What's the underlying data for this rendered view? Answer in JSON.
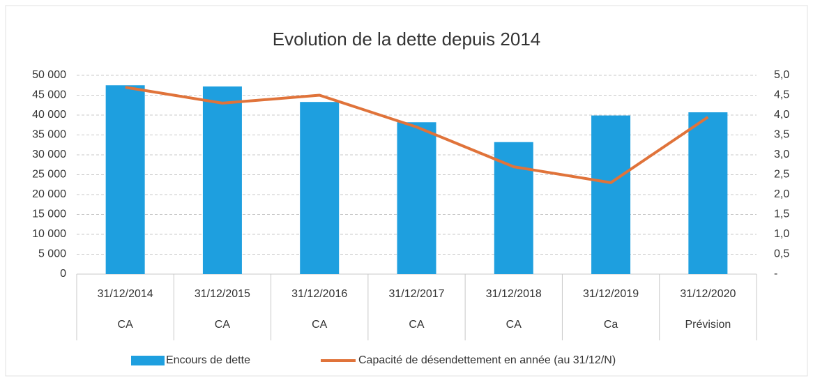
{
  "chart_data": {
    "type": "bar-line",
    "title": "Evolution de la dette depuis 2014",
    "categories": [
      "31/12/2014",
      "31/12/2015",
      "31/12/2016",
      "31/12/2017",
      "31/12/2018",
      "31/12/2019",
      "31/12/2020"
    ],
    "category_groups": [
      "CA",
      "CA",
      "CA",
      "CA",
      "CA",
      "Ca",
      "Prévision"
    ],
    "series": [
      {
        "name": "Encours de dette",
        "type": "bar",
        "color": "#1e9fdf",
        "values": [
          47500,
          47200,
          43300,
          38200,
          33200,
          39900,
          40700
        ]
      },
      {
        "name": "Capacité de désendettement en année (au 31/12/N)",
        "type": "line",
        "axis": "y2",
        "color": "#e0733a",
        "values": [
          4.7,
          4.3,
          4.5,
          3.7,
          2.7,
          2.3,
          3.95
        ]
      }
    ],
    "ylim": [
      0,
      50000
    ],
    "yticks": [
      0,
      {
        "value": 5000,
        "label": "5 000"
      },
      {
        "value": 10000,
        "label": "10 000"
      },
      {
        "value": 15000,
        "label": "15 000"
      },
      {
        "value": 20000,
        "label": "20 000"
      },
      {
        "value": 25000,
        "label": "25 000"
      },
      {
        "value": 30000,
        "label": "30 000"
      },
      {
        "value": 35000,
        "label": "35 000"
      },
      {
        "value": 40000,
        "label": "40 000"
      },
      {
        "value": 45000,
        "label": "45 000"
      },
      {
        "value": 50000,
        "label": "50 000"
      }
    ],
    "y2lim": [
      0,
      5
    ],
    "y2ticks": [
      {
        "value": 0,
        "label": "-"
      },
      {
        "value": 0.5,
        "label": "0,5"
      },
      {
        "value": 1,
        "label": "1,0"
      },
      {
        "value": 1.5,
        "label": "1,5"
      },
      {
        "value": 2,
        "label": "2,0"
      },
      {
        "value": 2.5,
        "label": "2,5"
      },
      {
        "value": 3,
        "label": "3,0"
      },
      {
        "value": 3.5,
        "label": "3,5"
      },
      {
        "value": 4,
        "label": "4,0"
      },
      {
        "value": 4.5,
        "label": "4,5"
      },
      {
        "value": 5,
        "label": "5,0"
      }
    ],
    "grid": true,
    "legend": "bottom"
  }
}
